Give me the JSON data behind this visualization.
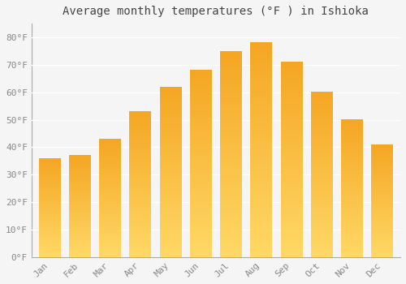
{
  "title": "Average monthly temperatures (°F ) in Ishioka",
  "months": [
    "Jan",
    "Feb",
    "Mar",
    "Apr",
    "May",
    "Jun",
    "Jul",
    "Aug",
    "Sep",
    "Oct",
    "Nov",
    "Dec"
  ],
  "values": [
    36,
    37,
    43,
    53,
    62,
    68,
    75,
    78,
    71,
    60,
    50,
    41
  ],
  "bar_color_top": "#F5A623",
  "bar_color_bottom": "#FFD966",
  "ylim": [
    0,
    85
  ],
  "yticks": [
    0,
    10,
    20,
    30,
    40,
    50,
    60,
    70,
    80
  ],
  "ytick_labels": [
    "0°F",
    "10°F",
    "20°F",
    "30°F",
    "40°F",
    "50°F",
    "60°F",
    "70°F",
    "80°F"
  ],
  "background_color": "#f5f5f5",
  "grid_color": "#ffffff",
  "title_fontsize": 10,
  "tick_fontsize": 8,
  "bar_width": 0.72,
  "figsize": [
    5.0,
    3.5
  ],
  "dpi": 100
}
